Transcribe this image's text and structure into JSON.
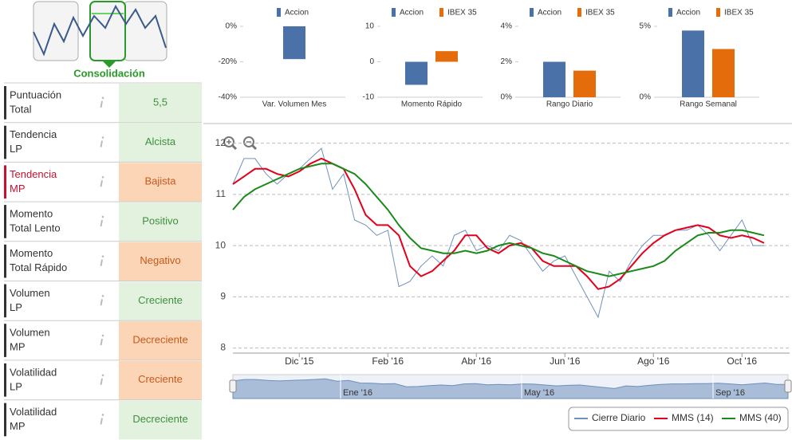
{
  "status": {
    "label": "Consolidación"
  },
  "indicators": [
    {
      "label": [
        "Puntuación",
        "Total"
      ],
      "value": "5,5",
      "label_color": "#333333",
      "color": "#e3f1df",
      "text_color": "#3f8f3f"
    },
    {
      "label": [
        "Tendencia",
        "LP"
      ],
      "value": "Alcista",
      "label_color": "#333333",
      "color": "#e3f1df",
      "text_color": "#3f8f3f"
    },
    {
      "label": [
        "Tendencia",
        "MP"
      ],
      "value": "Bajista",
      "label_color": "#c8102e",
      "color": "#fbd5b5",
      "text_color": "#c55a1e"
    },
    {
      "label": [
        "Momento",
        "Total Lento"
      ],
      "value": "Positivo",
      "label_color": "#333333",
      "color": "#e3f1df",
      "text_color": "#3f8f3f"
    },
    {
      "label": [
        "Momento",
        "Total Rápido"
      ],
      "value": "Negativo",
      "label_color": "#333333",
      "color": "#fbd5b5",
      "text_color": "#c55a1e"
    },
    {
      "label": [
        "Volumen",
        "LP"
      ],
      "value": "Creciente",
      "label_color": "#333333",
      "color": "#e3f1df",
      "text_color": "#3f8f3f"
    },
    {
      "label": [
        "Volumen",
        "MP"
      ],
      "value": "Decreciente",
      "label_color": "#333333",
      "color": "#fbd5b5",
      "text_color": "#c55a1e"
    },
    {
      "label": [
        "Volatilidad",
        "LP"
      ],
      "value": "Creciente",
      "label_color": "#333333",
      "color": "#fbd5b5",
      "text_color": "#c55a1e"
    },
    {
      "label": [
        "Volatilidad",
        "MP"
      ],
      "value": "Decreciente",
      "label_color": "#333333",
      "color": "#e3f1df",
      "text_color": "#3f8f3f"
    }
  ],
  "chart_data": [
    {
      "type": "bar",
      "categories": [
        "Var. Volumen Mes"
      ],
      "series": [
        {
          "name": "Accion",
          "color": "#4a72a8",
          "values": [
            -18.5
          ]
        }
      ],
      "ylim": [
        -40,
        0
      ],
      "yticks": [
        {
          "value": 0,
          "label": "0%"
        },
        {
          "value": -20,
          "label": "-20%"
        },
        {
          "value": -40,
          "label": "-40%"
        }
      ]
    },
    {
      "type": "bar",
      "categories": [
        "Momento Rápido"
      ],
      "series": [
        {
          "name": "Accion",
          "color": "#4a72a8",
          "values": [
            -6.5
          ]
        },
        {
          "name": "IBEX 35",
          "color": "#e46c0a",
          "values": [
            3
          ]
        }
      ],
      "ylim": [
        -10,
        10
      ],
      "yticks": [
        10,
        0,
        -10
      ]
    },
    {
      "type": "bar",
      "categories": [
        "Rango Diario"
      ],
      "series": [
        {
          "name": "Accion",
          "color": "#4a72a8",
          "values": [
            2
          ]
        },
        {
          "name": "IBEX 35",
          "color": "#e46c0a",
          "values": [
            1.5
          ]
        }
      ],
      "ylim": [
        0,
        4
      ],
      "yticks": [
        {
          "value": 4,
          "label": "4%"
        },
        {
          "value": 2,
          "label": "2%"
        },
        {
          "value": 0,
          "label": "0%"
        }
      ]
    },
    {
      "type": "bar",
      "categories": [
        "Rango Semanal"
      ],
      "series": [
        {
          "name": "Accion",
          "color": "#4a72a8",
          "values": [
            4.7
          ]
        },
        {
          "name": "IBEX 35",
          "color": "#e46c0a",
          "values": [
            3.4
          ]
        }
      ],
      "ylim": [
        0,
        5
      ],
      "yticks": [
        {
          "value": 5,
          "label": "5%"
        },
        {
          "value": 0,
          "label": "0%"
        }
      ]
    },
    {
      "type": "line",
      "categories": [
        null,
        null,
        null,
        null,
        null,
        null,
        "Dic '15",
        null,
        null,
        null,
        null,
        null,
        null,
        null,
        "Feb '16",
        null,
        null,
        null,
        null,
        null,
        null,
        null,
        "Abr '16",
        null,
        null,
        null,
        null,
        null,
        null,
        null,
        "Jun '16",
        null,
        null,
        null,
        null,
        null,
        null,
        null,
        "Ago '16",
        null,
        null,
        null,
        null,
        null,
        null,
        null,
        "Oct '16",
        null,
        null
      ],
      "series": [
        {
          "name": "Cierre Diario",
          "color": "#7191bd",
          "values": [
            11.2,
            11.7,
            11.7,
            11.4,
            11.2,
            11.4,
            11.5,
            11.7,
            11.9,
            11.1,
            11.4,
            10.5,
            10.4,
            10.2,
            10.3,
            9.2,
            9.3,
            9.6,
            9.8,
            9.6,
            10.2,
            10.3,
            9.9,
            10.0,
            9.9,
            10.2,
            10.1,
            9.8,
            9.5,
            9.7,
            9.8,
            9.4,
            9.0,
            8.6,
            9.5,
            9.3,
            9.7,
            10.0,
            10.2,
            10.2,
            10.3,
            10.3,
            10.4,
            10.2,
            9.9,
            10.2,
            10.5,
            10.0,
            10.0
          ]
        },
        {
          "name": "MMS (14)",
          "color": "#e3001b",
          "values": [
            11.2,
            11.35,
            11.5,
            11.5,
            11.4,
            11.35,
            11.45,
            11.6,
            11.7,
            11.6,
            11.5,
            11.1,
            10.6,
            10.4,
            10.4,
            10.2,
            9.6,
            9.4,
            9.5,
            9.7,
            9.9,
            10.2,
            10.2,
            9.95,
            9.85,
            10.0,
            10.05,
            9.95,
            9.7,
            9.6,
            9.6,
            9.6,
            9.4,
            9.15,
            9.2,
            9.35,
            9.6,
            9.85,
            10.05,
            10.2,
            10.3,
            10.35,
            10.4,
            10.35,
            10.2,
            10.15,
            10.2,
            10.15,
            10.05
          ]
        },
        {
          "name": "MMS (40)",
          "color": "#1a8a1a",
          "values": [
            10.7,
            10.95,
            11.1,
            11.2,
            11.3,
            11.4,
            11.5,
            11.55,
            11.6,
            11.6,
            11.5,
            11.4,
            11.2,
            10.95,
            10.7,
            10.4,
            10.15,
            9.95,
            9.9,
            9.85,
            9.85,
            9.9,
            9.85,
            9.9,
            10.0,
            10.05,
            10.0,
            9.95,
            9.85,
            9.8,
            9.7,
            9.6,
            9.5,
            9.45,
            9.4,
            9.45,
            9.5,
            9.55,
            9.6,
            9.7,
            9.9,
            10.05,
            10.2,
            10.25,
            10.25,
            10.3,
            10.3,
            10.25,
            10.2
          ]
        }
      ],
      "ylim": [
        7.9,
        12.15
      ],
      "yticks": [
        8,
        9,
        10,
        11,
        12
      ],
      "grid": true,
      "navigator_labels": [
        "Ene '16",
        "May '16",
        "Sep '16"
      ],
      "legend": "bottom-right"
    }
  ]
}
